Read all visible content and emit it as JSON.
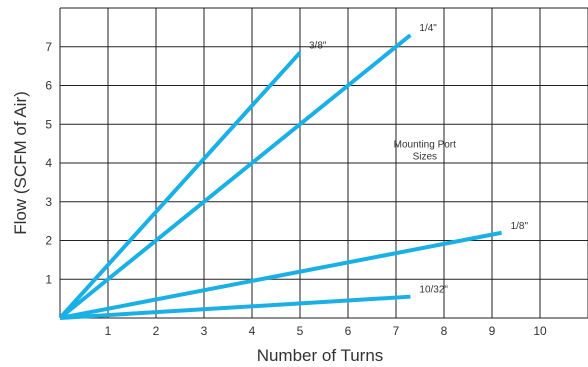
{
  "chart_data": {
    "type": "line",
    "xlabel": "Number of Turns",
    "ylabel": "Flow (SCFM of Air)",
    "xlim": [
      0,
      11
    ],
    "ylim": [
      0,
      8
    ],
    "x_ticks": [
      "1",
      "2",
      "3",
      "4",
      "5",
      "6",
      "7",
      "8",
      "9",
      "10"
    ],
    "y_ticks": [
      "1",
      "2",
      "3",
      "4",
      "5",
      "6",
      "7"
    ],
    "grid": true,
    "line_color": "#1ab0e6",
    "annotation": {
      "line1": "Mounting Port",
      "line2": "Sizes",
      "x": 7.6,
      "y": 4.4
    },
    "series": [
      {
        "name": "3/8\"",
        "x": [
          0,
          5
        ],
        "y": [
          0,
          6.85
        ]
      },
      {
        "name": "1/4\"",
        "x": [
          0,
          7.3
        ],
        "y": [
          0,
          7.3
        ]
      },
      {
        "name": "1/8\"",
        "x": [
          0,
          9.2
        ],
        "y": [
          0,
          2.2
        ]
      },
      {
        "name": "10/32\"",
        "x": [
          0,
          7.3
        ],
        "y": [
          0,
          0.55
        ]
      }
    ]
  }
}
